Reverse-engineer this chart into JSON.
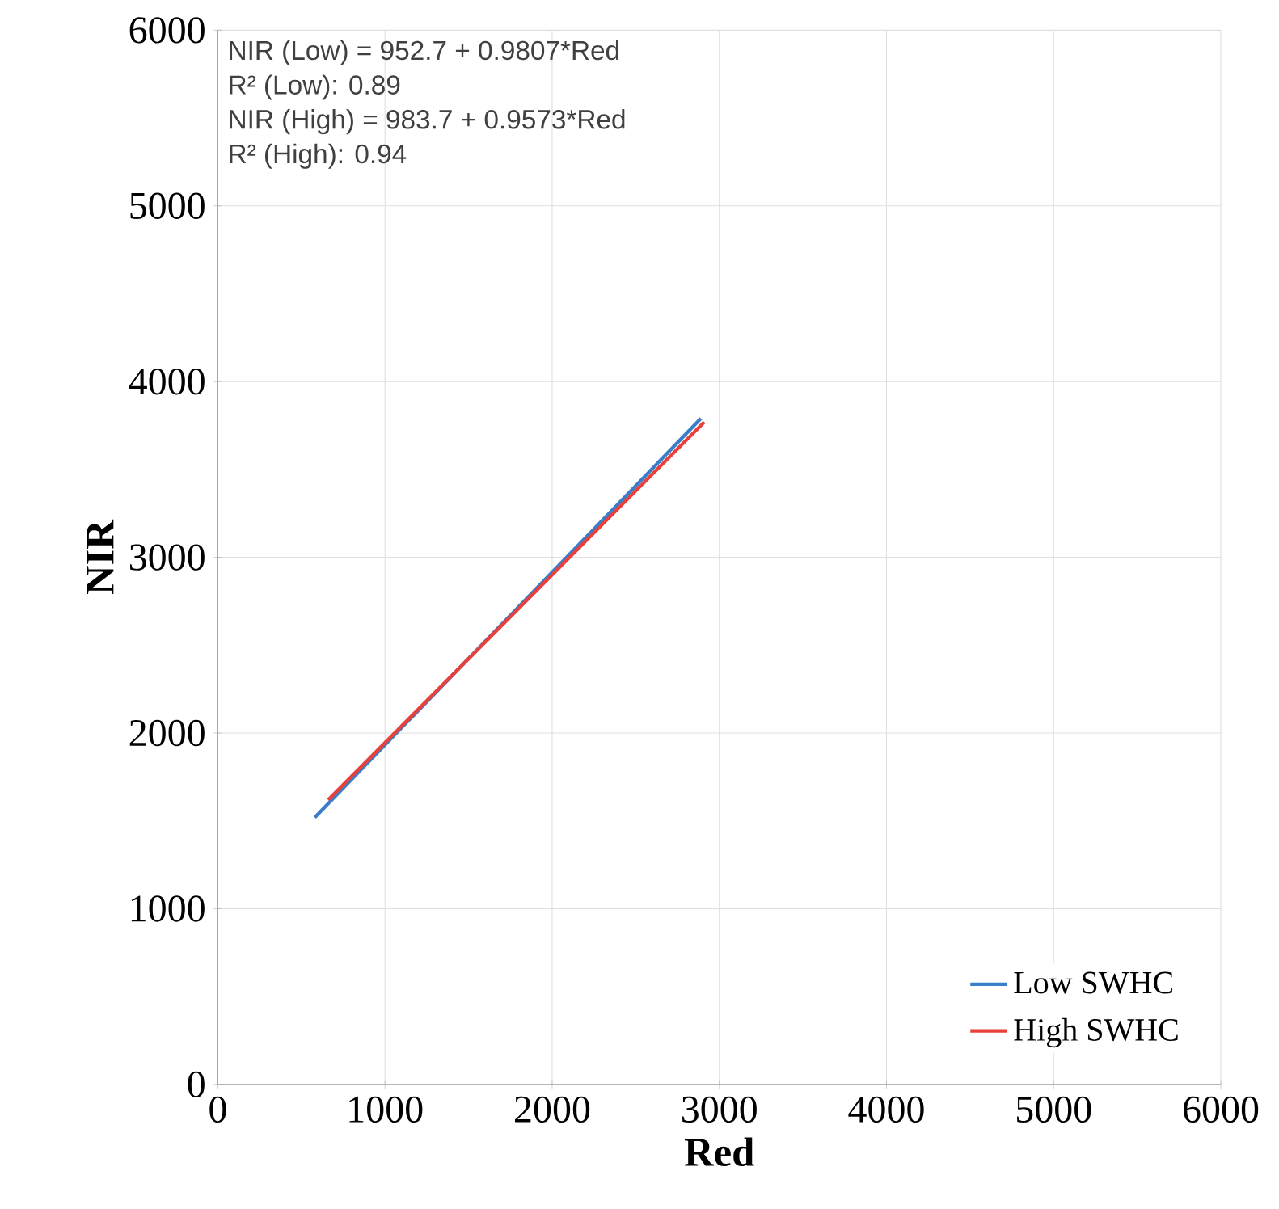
{
  "chart_data": {
    "type": "line",
    "xlabel": "Red",
    "ylabel": "NIR",
    "annotations": [
      "NIR (Low) = 952.7 + 0.9807*Red",
      "R² (Low): 0.89",
      "NIR (High) = 983.7 + 0.9573*Red",
      "R² (High): 0.94"
    ],
    "series": [
      {
        "name": "Low SWHC",
        "color": "#3a7dc9",
        "x": [
          580,
          2890
        ],
        "values": [
          1520,
          3790
        ]
      },
      {
        "name": "High SWHC",
        "color": "#e8413c",
        "x": [
          660,
          2910
        ],
        "values": [
          1620,
          3770
        ]
      }
    ],
    "xlim": [
      0,
      6000
    ],
    "ylim": [
      0,
      6000
    ],
    "xticks": [
      0,
      1000,
      2000,
      3000,
      4000,
      5000,
      6000
    ],
    "yticks": [
      0,
      1000,
      2000,
      3000,
      4000,
      5000,
      6000
    ],
    "grid": true,
    "legend": "bottom right",
    "marker": "none",
    "line_style": "solid"
  }
}
